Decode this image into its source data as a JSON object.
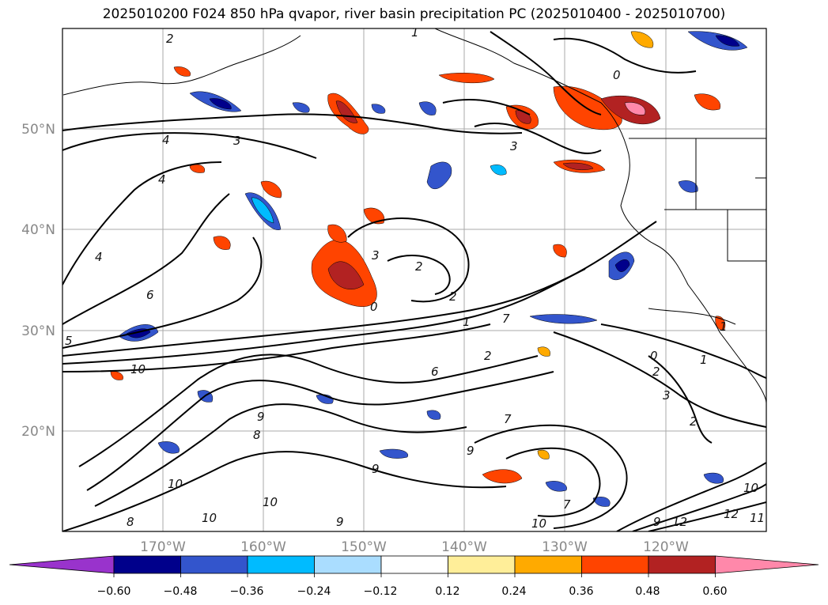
{
  "title": "2025010200 F024 850 hPa qvapor, river basin precipitation PC (2025010400 - 2025010700)",
  "lat_labels": [
    "50°N",
    "40°N",
    "30°N",
    "20°N"
  ],
  "lon_labels": [
    "170°W",
    "160°W",
    "150°W",
    "140°W",
    "130°W",
    "120°W"
  ],
  "colorbar": {
    "ticks": [
      "−0.60",
      "−0.48",
      "−0.36",
      "−0.24",
      "−0.12",
      "0.12",
      "0.24",
      "0.36",
      "0.48",
      "0.60"
    ],
    "colors": [
      "#9933cc",
      "#00008b",
      "#3355cc",
      "#00bbff",
      "#aaddff",
      "#ffffff",
      "#ffee99",
      "#ffaa00",
      "#ff4400",
      "#b22222",
      "#ff88aa"
    ]
  },
  "contour_labels": [
    "2",
    "1",
    "0",
    "3",
    "4",
    "4",
    "3",
    "4",
    "2",
    "3",
    "2",
    "1",
    "0",
    "6",
    "5",
    "10",
    "10",
    "8",
    "9",
    "10",
    "8",
    "9",
    "9",
    "6",
    "7",
    "9",
    "12",
    "11",
    "12",
    "10",
    "7",
    "10",
    "9",
    "2",
    "1",
    "0",
    "1",
    "2",
    "3",
    "2",
    "7",
    "10"
  ]
}
